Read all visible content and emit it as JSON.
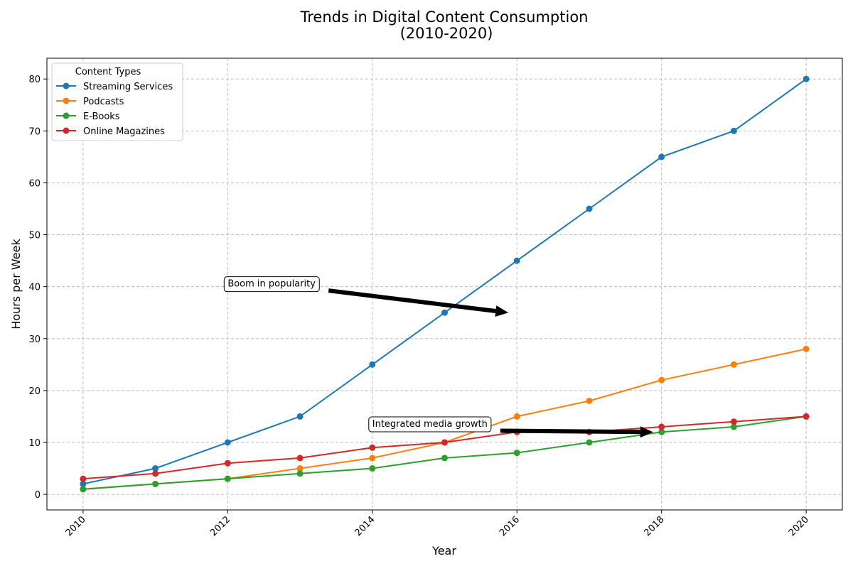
{
  "chart_data": {
    "type": "line",
    "title_lines": [
      "Trends in Digital Content Consumption",
      "(2010-2020)"
    ],
    "xlabel": "Year",
    "ylabel": "Hours per Week",
    "x": [
      2010,
      2011,
      2012,
      2013,
      2014,
      2015,
      2016,
      2017,
      2018,
      2019,
      2020
    ],
    "xlim": [
      2009.5,
      2020.5
    ],
    "ylim": [
      -3,
      84
    ],
    "xticks": [
      2010,
      2012,
      2014,
      2016,
      2018,
      2020
    ],
    "yticks": [
      0,
      10,
      20,
      30,
      40,
      50,
      60,
      70,
      80
    ],
    "grid": true,
    "legend": {
      "title": "Content Types",
      "placement": "top-left"
    },
    "series": [
      {
        "name": "Streaming Services",
        "color": "#1f77b4",
        "values": [
          2,
          5,
          10,
          15,
          25,
          35,
          45,
          55,
          65,
          70,
          80
        ]
      },
      {
        "name": "Podcasts",
        "color": "#ff7f0e",
        "values": [
          1,
          2,
          3,
          5,
          7,
          10,
          15,
          18,
          22,
          25,
          28
        ]
      },
      {
        "name": "E-Books",
        "color": "#2ca02c",
        "values": [
          1,
          2,
          3,
          4,
          5,
          7,
          8,
          10,
          12,
          13,
          15
        ]
      },
      {
        "name": "Online Magazines",
        "color": "#d62728",
        "values": [
          3,
          4,
          6,
          7,
          9,
          10,
          12,
          12,
          13,
          14,
          15
        ]
      }
    ],
    "annotations": [
      {
        "text": "Boom in popularity",
        "text_at": [
          2012,
          40
        ],
        "point_at": [
          2016,
          35
        ]
      },
      {
        "text": "Integrated media growth",
        "text_at": [
          2014,
          13
        ],
        "point_at": [
          2018,
          12
        ]
      }
    ]
  }
}
